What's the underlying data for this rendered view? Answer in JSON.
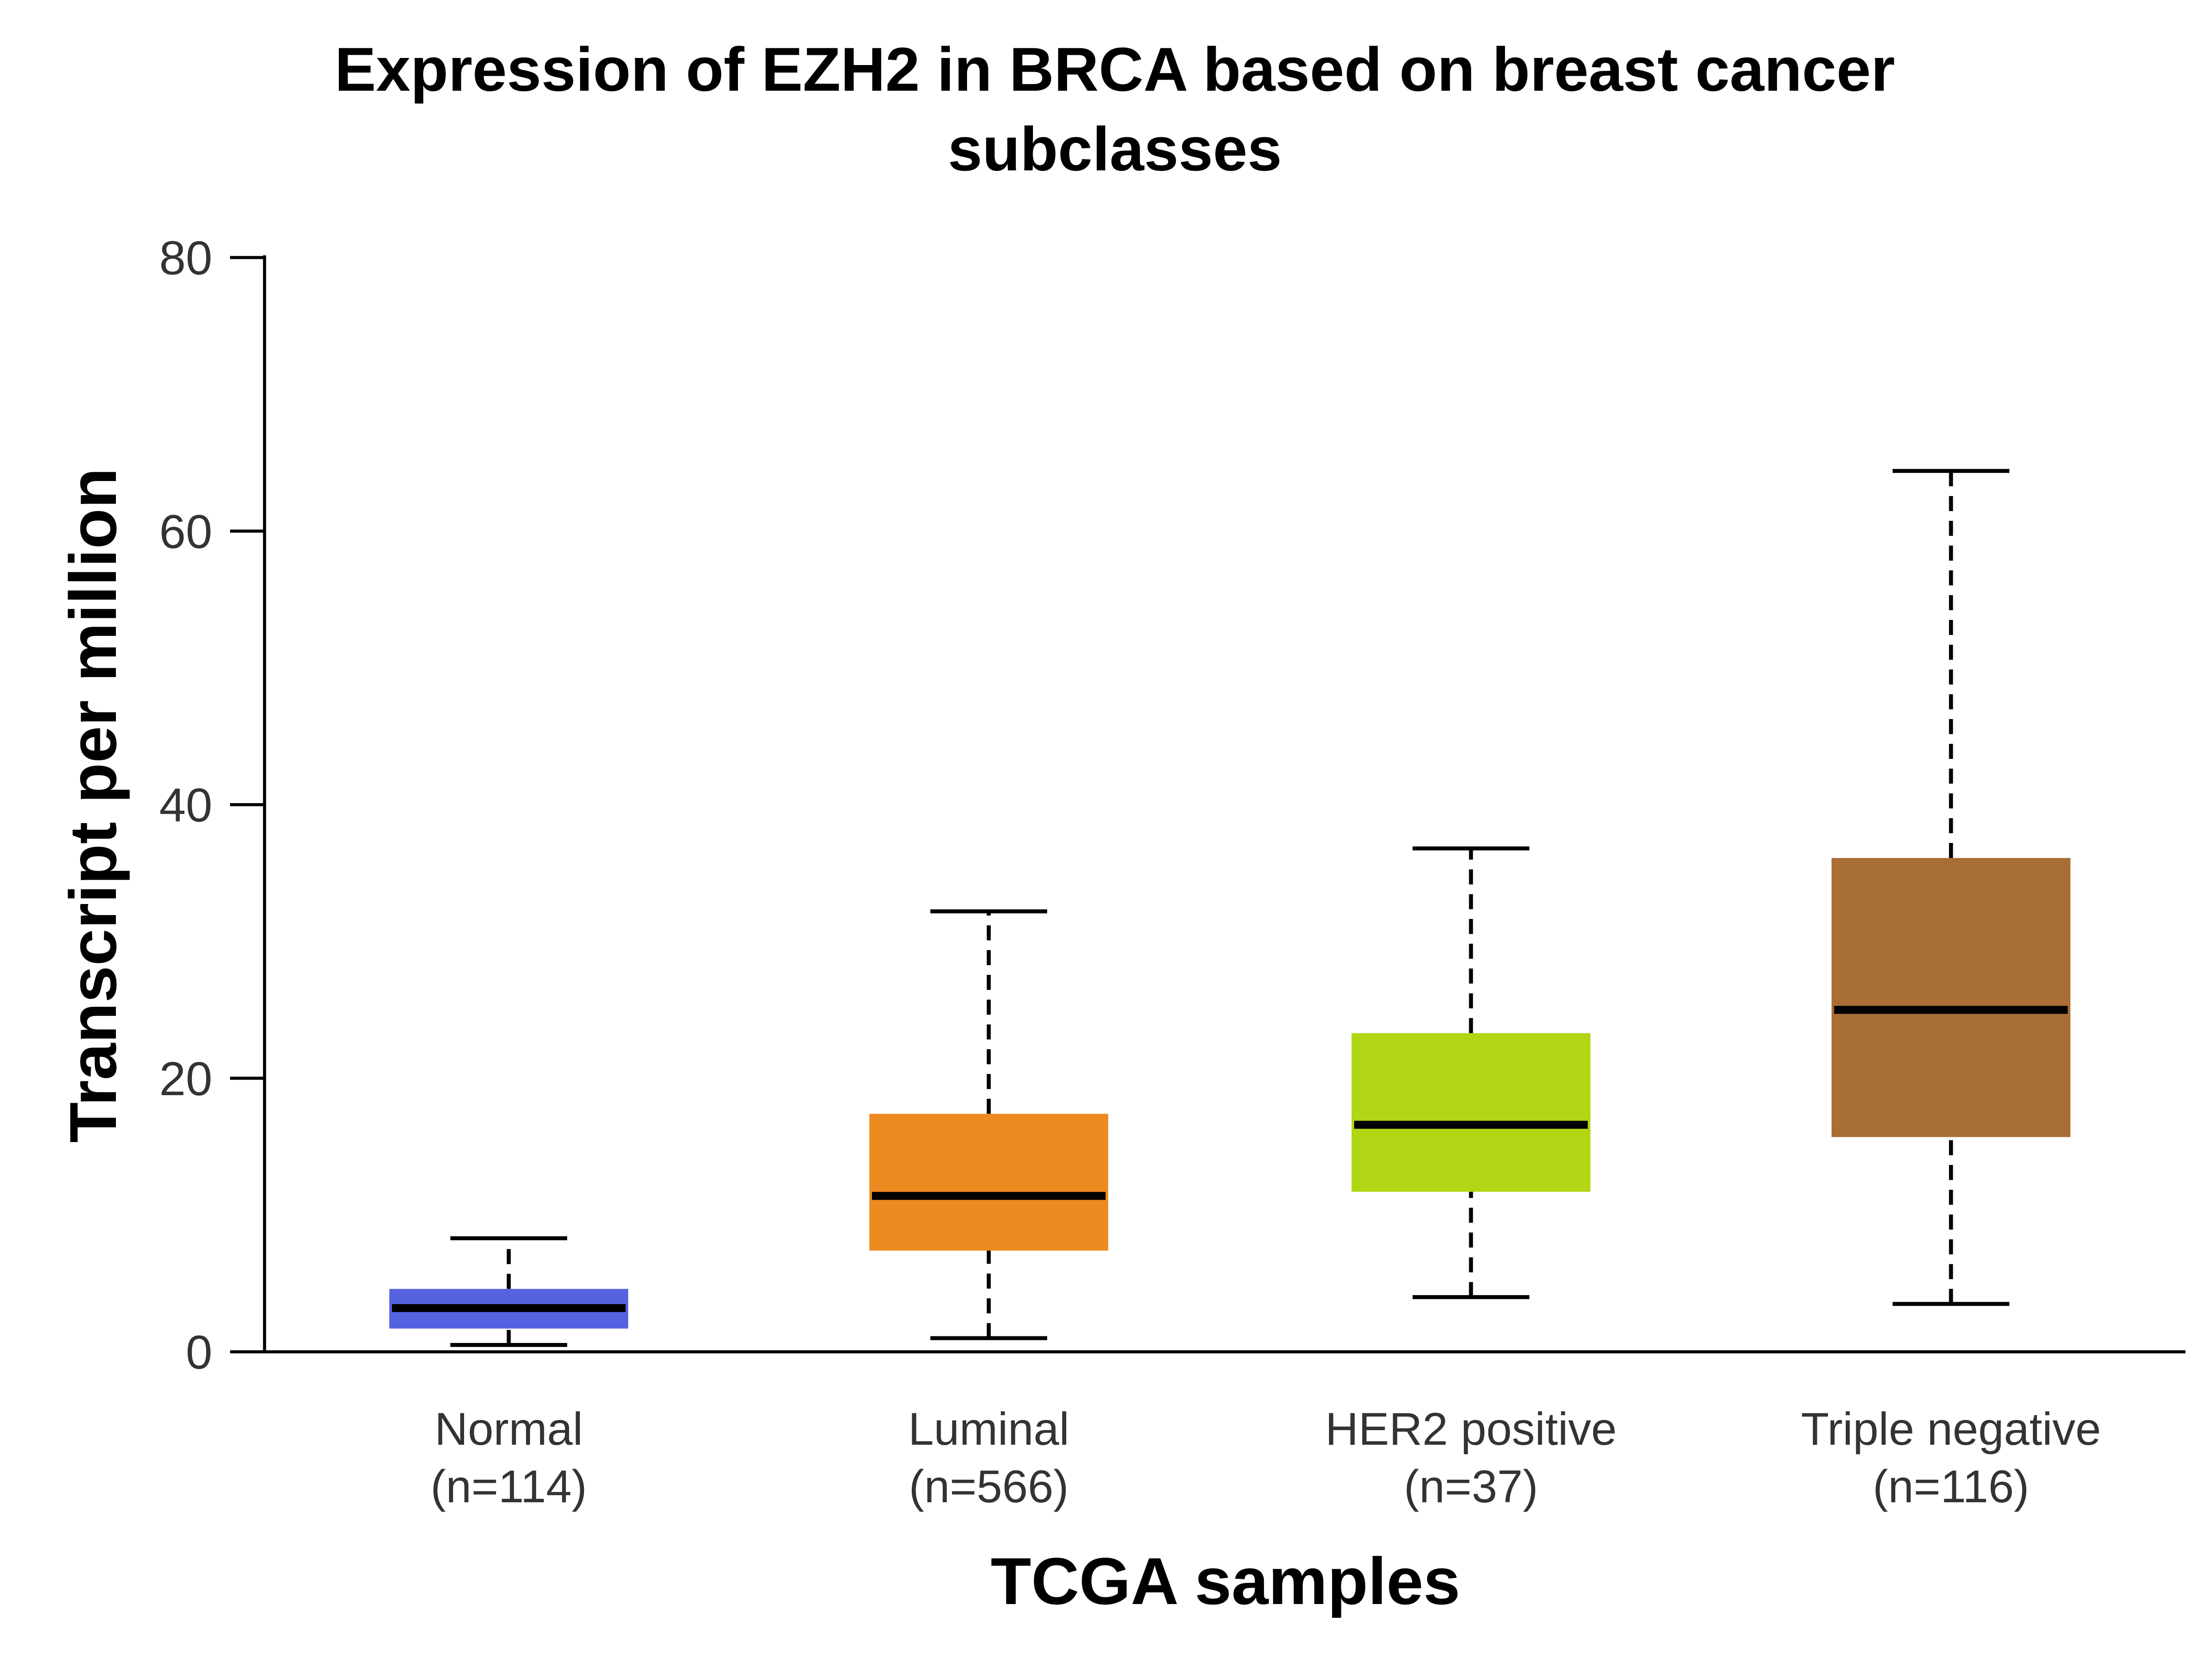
{
  "chart_data": {
    "type": "box",
    "title": [
      "Expression of EZH2 in BRCA based on breast cancer",
      "subclasses"
    ],
    "xlabel": "TCGA samples",
    "ylabel": "Transcript per million",
    "ylim": [
      0,
      80
    ],
    "yticks": [
      "0",
      "20",
      "40",
      "60",
      "80"
    ],
    "categories": [
      {
        "name": "Normal",
        "n_label": "(n=114)",
        "min": 0.5,
        "q1": 1.7,
        "median": 3.2,
        "q3": 4.6,
        "max": 8.3,
        "color": "#5563e0"
      },
      {
        "name": "Luminal",
        "n_label": "(n=566)",
        "min": 1.0,
        "q1": 7.4,
        "median": 11.4,
        "q3": 17.4,
        "max": 32.2,
        "color": "#ee8a22"
      },
      {
        "name": "HER2 positive",
        "n_label": "(n=37)",
        "min": 4.0,
        "q1": 11.7,
        "median": 16.6,
        "q3": 23.3,
        "max": 36.8,
        "color": "#b1d614"
      },
      {
        "name": "Triple negative",
        "n_label": "(n=116)",
        "min": 3.5,
        "q1": 15.7,
        "median": 25.0,
        "q3": 36.1,
        "max": 64.4,
        "color": "#a86e35"
      }
    ]
  }
}
